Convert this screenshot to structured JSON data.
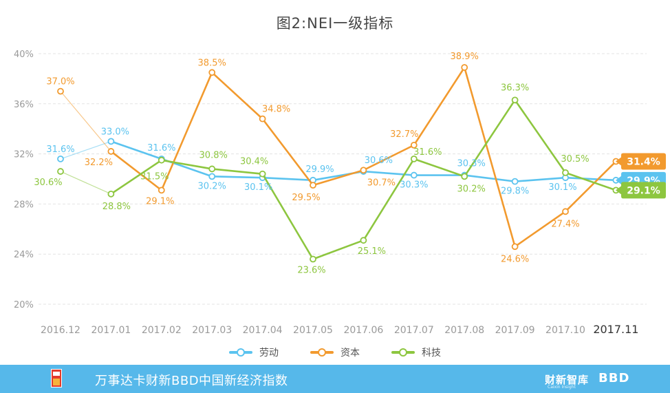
{
  "chart_data": {
    "type": "line",
    "title": "图2:NEI一级指标",
    "categories": [
      "2016.12",
      "2017.01",
      "2017.02",
      "2017.03",
      "2017.04",
      "2017.05",
      "2017.06",
      "2017.07",
      "2017.08",
      "2017.09",
      "2017.10",
      "2017.11"
    ],
    "ylim": [
      20,
      40
    ],
    "yticks": [
      20,
      24,
      28,
      32,
      36,
      40
    ],
    "ytick_labels": [
      "20%",
      "24%",
      "28%",
      "32%",
      "36%",
      "40%"
    ],
    "grid": true,
    "legend_position": "bottom",
    "series": [
      {
        "name": "劳动",
        "color": "#5bc3ef",
        "values": [
          31.6,
          33.0,
          31.6,
          30.2,
          30.1,
          29.9,
          30.6,
          30.3,
          30.3,
          29.8,
          30.1,
          29.9
        ],
        "labels": [
          "31.6%",
          "33.0%",
          "31.6%",
          "30.2%",
          "30.1%",
          "29.9%",
          "30.6%",
          "30.3%",
          "30.3%",
          "29.8%",
          "30.1%",
          ""
        ],
        "end_label": "29.9%"
      },
      {
        "name": "资本",
        "color": "#f29a2e",
        "values": [
          37.0,
          32.2,
          29.1,
          38.5,
          34.8,
          29.5,
          30.7,
          32.7,
          38.9,
          24.6,
          27.4,
          31.4
        ],
        "labels": [
          "37.0%",
          "32.2%",
          "29.1%",
          "38.5%",
          "34.8%",
          "29.5%",
          "30.7%",
          "32.7%",
          "38.9%",
          "24.6%",
          "27.4%",
          ""
        ],
        "end_label": "31.4%"
      },
      {
        "name": "科技",
        "color": "#8dc63f",
        "values": [
          30.6,
          28.8,
          31.5,
          30.8,
          30.4,
          23.6,
          25.1,
          31.6,
          30.2,
          36.3,
          30.5,
          29.1
        ],
        "labels": [
          "30.6%",
          "28.8%",
          "31.5%",
          "30.8%",
          "30.4%",
          "23.6%",
          "25.1%",
          "31.6%",
          "30.2%",
          "36.3%",
          "30.5%",
          ""
        ],
        "end_label": "29.1%"
      }
    ]
  },
  "footer": {
    "text": "万事达卡财新BBD中国新经济指数",
    "brand1": "财新智库",
    "brand1_sub": "Caixin Insight",
    "brand2": "BBD"
  }
}
